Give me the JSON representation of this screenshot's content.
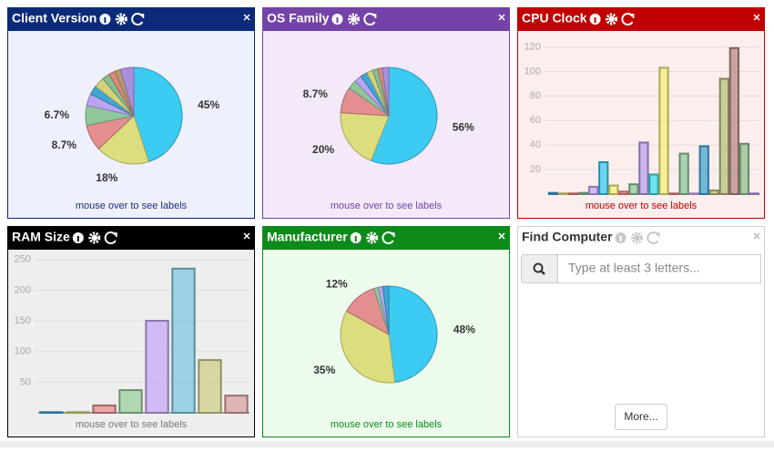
{
  "chart_data": [
    {
      "type": "pie",
      "title": "Client Version",
      "footer": "mouse over to see labels",
      "values": [
        45,
        18,
        8.7,
        6.7,
        4,
        3,
        3.5,
        2.5,
        2.1,
        2,
        4.5
      ],
      "value_labels": [
        "45%",
        "18%",
        "8.7%",
        "6.7%",
        null,
        null,
        null,
        null,
        null,
        null,
        null
      ],
      "colors": [
        "#3ccbf2",
        "#dcdd7c",
        "#e48f8f",
        "#8fc79a",
        "#bba4f2",
        "#3fa6d6",
        "#d4d27a",
        "#86c08e",
        "#d98a80",
        "#b79a6e",
        "#a890dc"
      ]
    },
    {
      "type": "pie",
      "title": "OS Family",
      "footer": "mouse over to see labels",
      "values": [
        56,
        20,
        8.7,
        3,
        2.5,
        2.3,
        2,
        1.8,
        1.5,
        2.2
      ],
      "value_labels": [
        "56%",
        "20%",
        "8.7%",
        null,
        null,
        null,
        null,
        null,
        null,
        null
      ],
      "colors": [
        "#3ccbf2",
        "#dcdd7c",
        "#e48f8f",
        "#8fc79a",
        "#bba4f2",
        "#3fa6d6",
        "#d4d27a",
        "#86c08e",
        "#d98a80",
        "#a890dc"
      ]
    },
    {
      "type": "bar",
      "title": "CPU Clock",
      "footer": "mouse over to see labels",
      "categories": [
        null,
        null,
        null,
        null,
        null,
        null,
        null,
        null,
        null,
        null,
        null,
        null,
        null,
        null,
        null,
        null,
        null,
        null,
        null,
        null,
        null
      ],
      "values": [
        1,
        0.5,
        0.5,
        1,
        6,
        26,
        7,
        2,
        8,
        42,
        16,
        103,
        0.5,
        33,
        0.5,
        39,
        3,
        94,
        119,
        41,
        0.5
      ],
      "colors": [
        "#3fa6d6",
        "#e8e87a",
        "#ee7f7f",
        "#8fc79a",
        "#c6a8f5",
        "#3ccbf2",
        "#f3f07a",
        "#f48a8a",
        "#8fc79a",
        "#b9a0ea",
        "#3ce2f2",
        "#f5f07a",
        "#f28585",
        "#8fc79a",
        "#d4b4f8",
        "#3fa6d6",
        "#c7c27a",
        "#b8c07c",
        "#b88a86",
        "#8fbf8f",
        "#b9a0ea"
      ],
      "ylim": [
        0,
        130
      ],
      "yticks": [
        20,
        40,
        60,
        80,
        100,
        120
      ],
      "grid": true
    },
    {
      "type": "bar",
      "title": "RAM Size",
      "footer": "mouse over to see labels",
      "categories": [
        null,
        null,
        null,
        null,
        null,
        null,
        null,
        null
      ],
      "values": [
        1,
        1,
        12,
        37,
        150,
        235,
        86,
        28
      ],
      "colors": [
        "#3fa6d6",
        "#d9d97a",
        "#e48f8f",
        "#9ccf9e",
        "#c6a8f5",
        "#7fc9e0",
        "#cfcf8a",
        "#d9a0a0"
      ],
      "ylim": [
        0,
        260
      ],
      "yticks": [
        50,
        100,
        150,
        200,
        250
      ],
      "grid": true
    },
    {
      "type": "pie",
      "title": "Manufacturer",
      "footer": "mouse over to see labels",
      "values": [
        48,
        35,
        12,
        1.5,
        1.5,
        2
      ],
      "value_labels": [
        "48%",
        "35%",
        "12%",
        null,
        null,
        null
      ],
      "colors": [
        "#3ccbf2",
        "#dcdd7c",
        "#e48f8f",
        "#8fc79a",
        "#bba4f2",
        "#3fa6d6"
      ]
    }
  ],
  "find_computer": {
    "title": "Find Computer",
    "placeholder": "Type at least 3 letters...",
    "button": "More..."
  }
}
